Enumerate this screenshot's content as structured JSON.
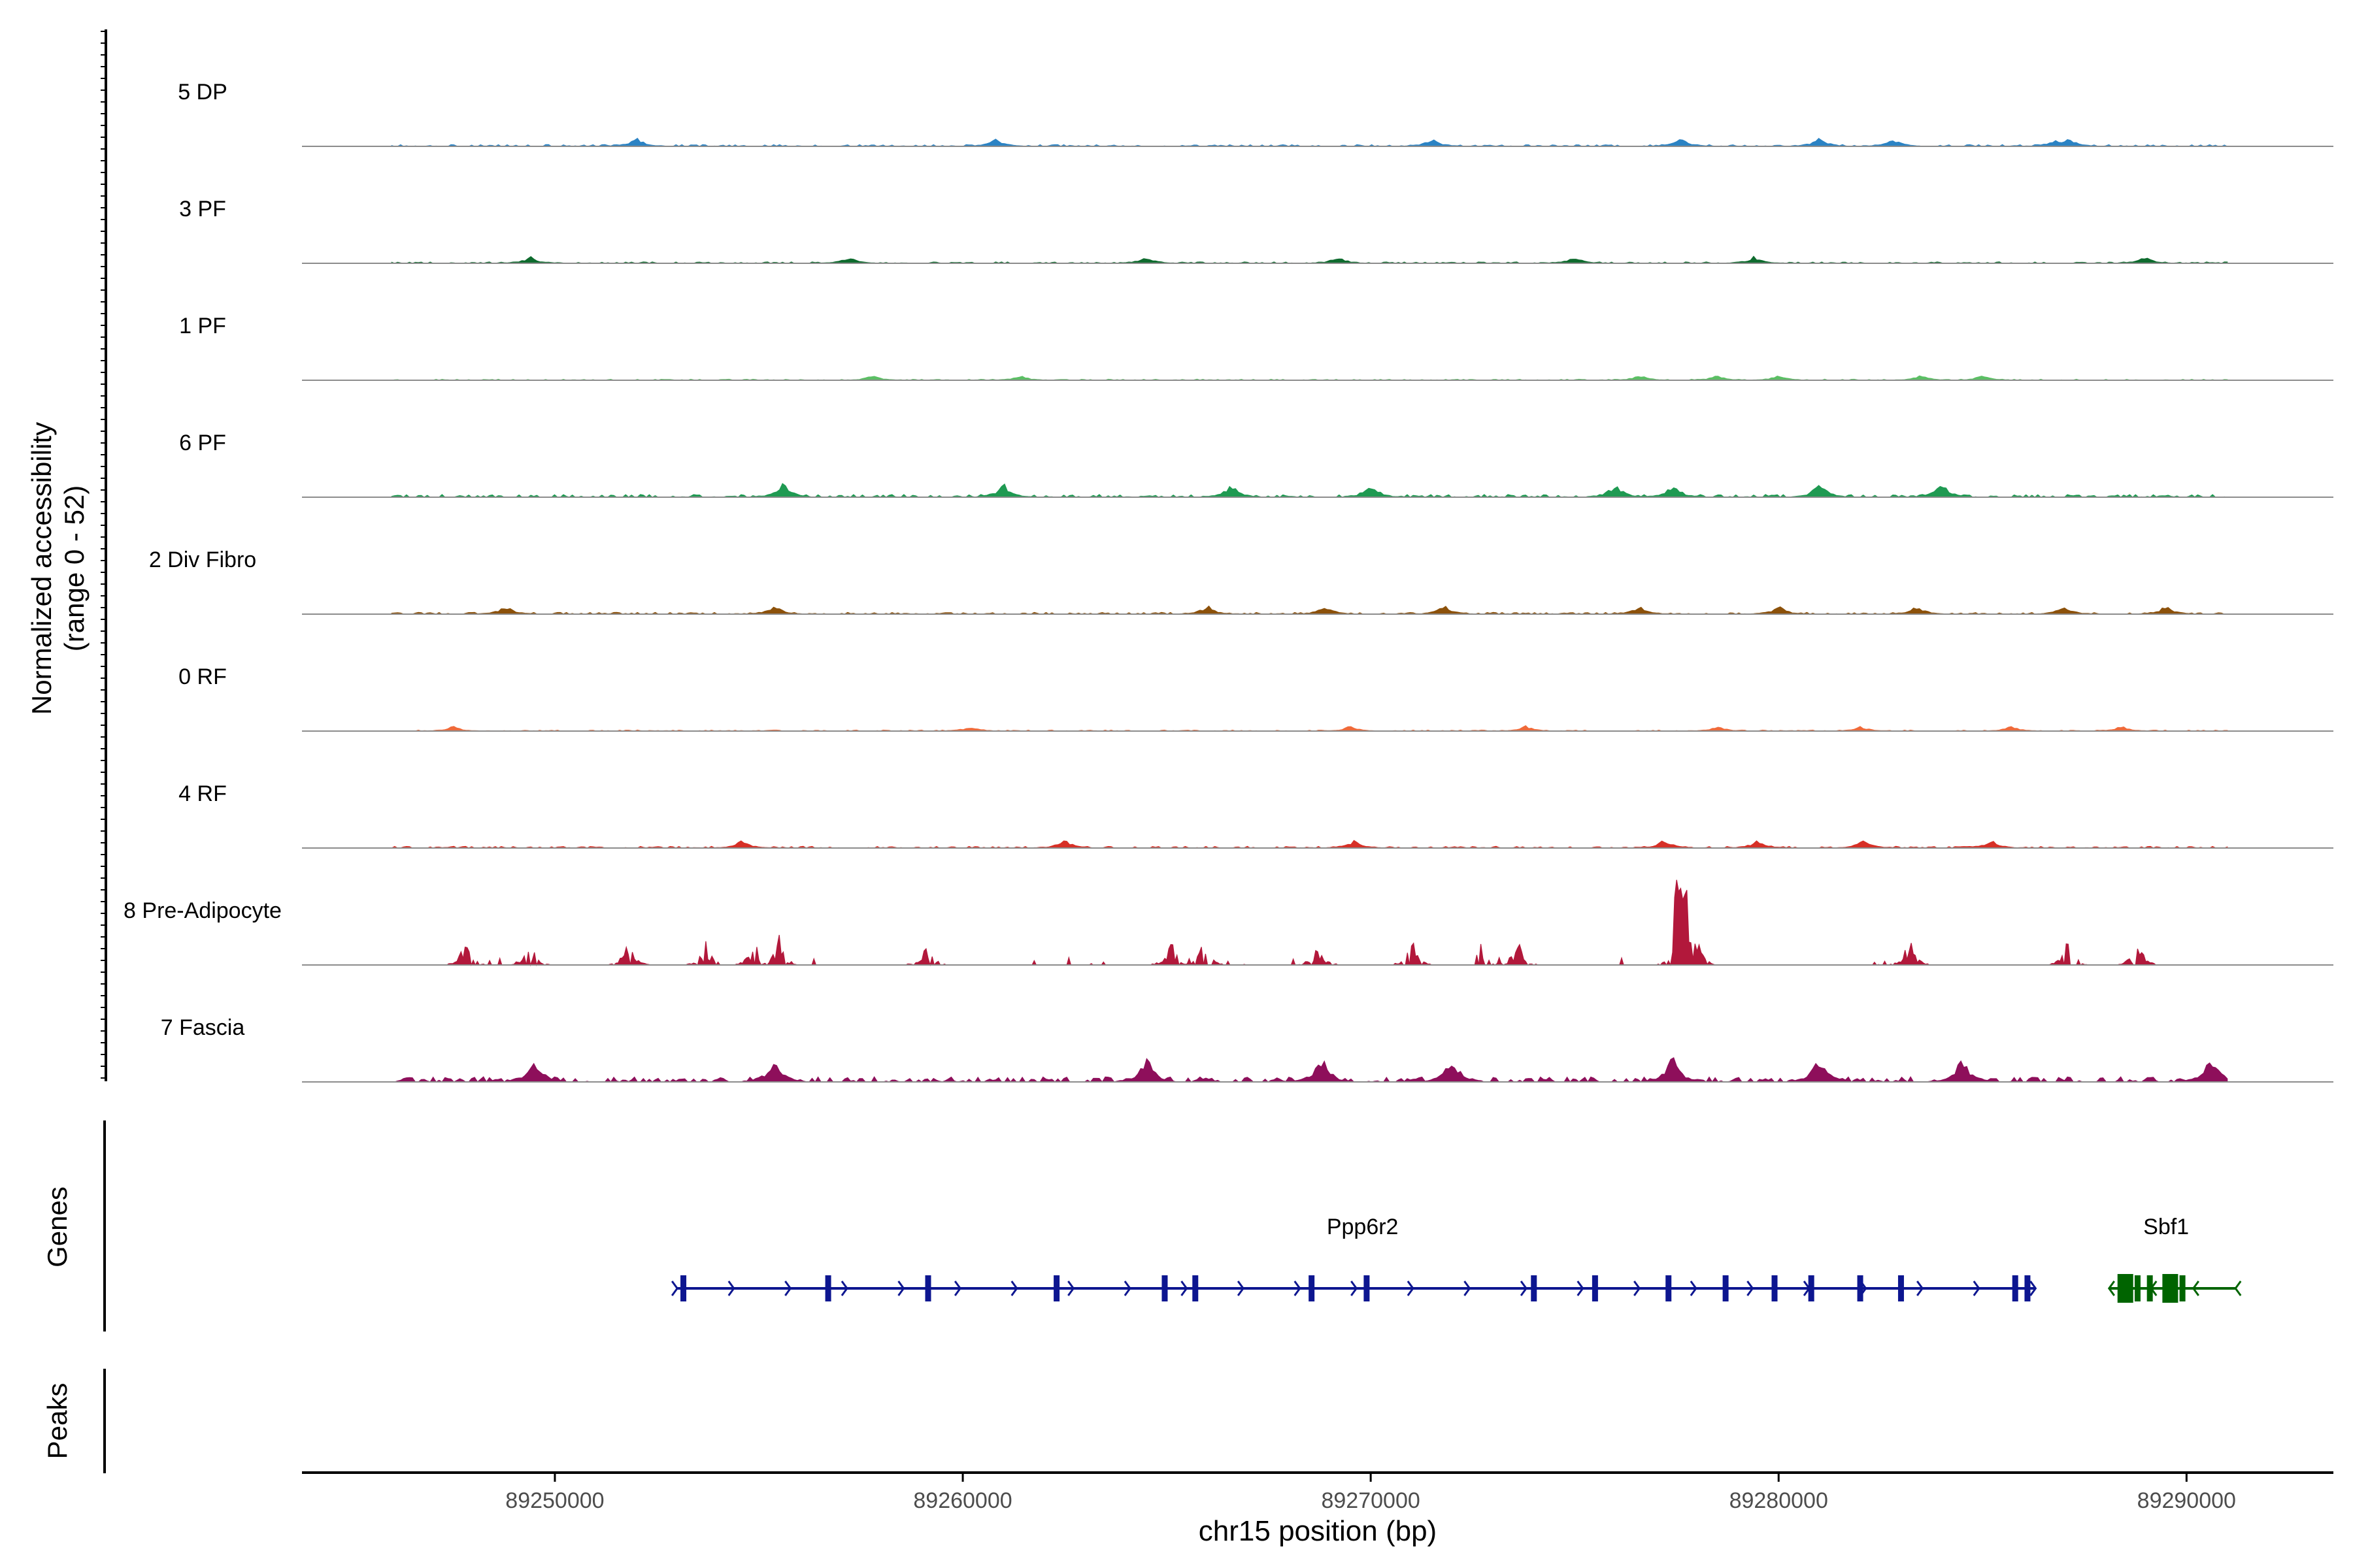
{
  "chart_data": {
    "type": "area",
    "panel_type": "genome-coverage-track",
    "y_axis": {
      "label_line1": "Normalized accessibility",
      "label_line2": "(range 0 - 52)",
      "range": [
        0,
        52
      ]
    },
    "x_axis": {
      "label": "chr15 position (bp)",
      "range": [
        89243800,
        89293600
      ],
      "ticks": [
        89250000,
        89260000,
        89270000,
        89280000,
        89290000
      ],
      "tick_labels": [
        "89250000",
        "89260000",
        "89270000",
        "89280000",
        "89290000"
      ]
    },
    "tracks": [
      {
        "name": "5 DP",
        "color": "#2b83c4",
        "max_height": 5,
        "peak_positions": [
          89252000,
          89260800,
          89271500,
          89277600,
          89281000,
          89282800,
          89286800,
          89287100
        ]
      },
      {
        "name": "3 PF",
        "color": "#0e6b2e",
        "max_height": 4,
        "peak_positions": [
          89249400,
          89257200,
          89264500,
          89269200,
          89275000,
          89279400,
          89289000
        ]
      },
      {
        "name": "1 PF",
        "color": "#5bbf64",
        "max_height": 3,
        "peak_positions": [
          89257800,
          89261400,
          89276600,
          89278500,
          89280000,
          89283500,
          89285000
        ]
      },
      {
        "name": "6 PF",
        "color": "#1f9a52",
        "max_height": 8,
        "peak_positions": [
          89255600,
          89261000,
          89266600,
          89270000,
          89276000,
          89277400,
          89281000,
          89284000
        ]
      },
      {
        "name": "2 Div Fibro",
        "color": "#8c510a",
        "max_height": 5,
        "peak_positions": [
          89248800,
          89255400,
          89266000,
          89268900,
          89271800,
          89276600,
          89280000,
          89283400,
          89287000,
          89289500
        ]
      },
      {
        "name": "0 RF",
        "color": "#ef6a3a",
        "max_height": 3,
        "peak_positions": [
          89247500,
          89260200,
          89269500,
          89273800,
          89278500,
          89282000,
          89285700,
          89288400
        ]
      },
      {
        "name": "4 RF",
        "color": "#d73027",
        "max_height": 5,
        "peak_positions": [
          89254600,
          89262500,
          89269600,
          89277200,
          89279500,
          89282100,
          89285200
        ]
      },
      {
        "name": "8 Pre-Adipocyte",
        "color": "#b2183b",
        "max_height": 52,
        "peak_positions": [
          89247800,
          89249400,
          89251800,
          89253700,
          89254900,
          89255500,
          89259100,
          89265100,
          89265900,
          89268700,
          89271000,
          89272700,
          89273600,
          89277500,
          89277800,
          89278000,
          89283200,
          89287100,
          89288800
        ]
      },
      {
        "name": "7 Fascia",
        "color": "#8e0f5b",
        "max_height": 15,
        "peak_positions": [
          89249500,
          89255400,
          89264500,
          89268800,
          89272000,
          89277400,
          89281000,
          89284500,
          89290600
        ]
      }
    ],
    "genes": [
      {
        "name": "Ppp6r2",
        "strand": "+",
        "color": "#0d1690",
        "start": 89253000,
        "end": 89286300,
        "label_position": 89269800,
        "exons": [
          89253150,
          89256700,
          89259150,
          89262300,
          89264950,
          89265700,
          89268550,
          89269900,
          89274000,
          89275500,
          89277300,
          89278700,
          89279900,
          89280800,
          89282000,
          89283000,
          89285800,
          89286100
        ]
      },
      {
        "name": "Sbf1",
        "strand": "-",
        "color": "#006400",
        "start": 89288100,
        "end": 89291200,
        "label_position": 89289500,
        "exons": [
          89288500,
          89288800,
          89289100,
          89289600,
          89289900
        ]
      }
    ],
    "side_labels": {
      "genes": "Genes",
      "peaks": "Peaks"
    }
  }
}
